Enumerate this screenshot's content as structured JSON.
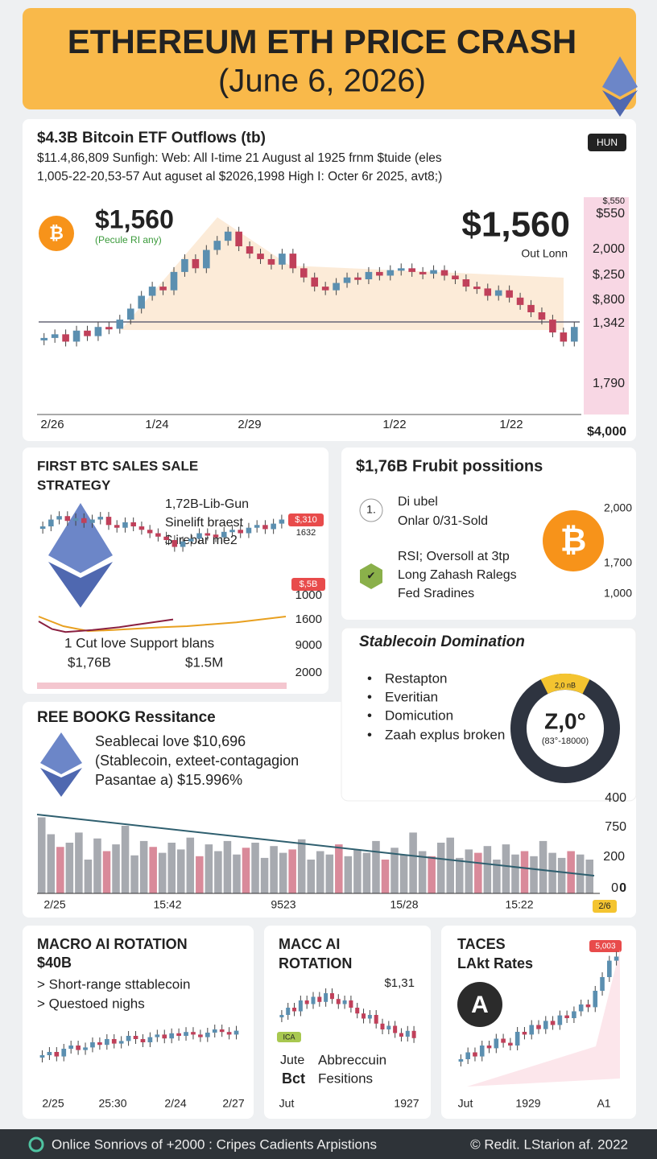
{
  "header": {
    "title": "ETHEREUM ETH PRICE CRASH",
    "subtitle": "(June 6, 2026)"
  },
  "main": {
    "title": "$4.3B Bitcoin ETF Outflows (tb)",
    "lines": [
      "$11.4,86,809 Sunfigh: Web: All I-time 21 August al 1925 frnm $tuide (eles",
      "1,005-22-20,53-57 Aut aguset al $2026,1998 High I: Octer 6r 2025, avt8;)"
    ],
    "badge": "HUN",
    "price_left": "$1,560",
    "price_left_note": "(Pecule RI any)",
    "price_right": "$1,560",
    "price_right_note": "Out Lonn",
    "right_labels": [
      "$,550",
      "$550",
      "2,000",
      "$,250",
      "$,800",
      "1,342",
      "1,790"
    ],
    "corner_label": "$4,000",
    "x_labels": [
      "2/26",
      "1/24",
      "2/29",
      "1/22",
      "1/22"
    ],
    "ylim": [
      1500,
      2400
    ],
    "values": [
      1720,
      1740,
      1700,
      1760,
      1730,
      1780,
      1770,
      1820,
      1880,
      1950,
      2000,
      1980,
      2080,
      2150,
      2100,
      2200,
      2250,
      2300,
      2220,
      2180,
      2150,
      2120,
      2180,
      2100,
      2050,
      2000,
      1980,
      2020,
      2050,
      2040,
      2080,
      2060,
      2090,
      2100,
      2080,
      2070,
      2090,
      2060,
      2040,
      2000,
      1990,
      1950,
      1980,
      1940,
      1900,
      1860,
      1820,
      1750,
      1700,
      1780
    ]
  },
  "strategy": {
    "title_lines": [
      "FIRST BTC SALES SALE",
      "STRATEGY"
    ],
    "notes": [
      "1,72B-Lib-Gun",
      "Sinelift braest",
      "$ irebar    me2"
    ],
    "badge": "$,310",
    "badge_note": "1632",
    "lower_badge": "$,5B",
    "axis_labels": [
      "1000",
      "1600",
      "9000",
      "2000"
    ],
    "support": "1 Cut love Support blans",
    "amount_left": "$1,76B",
    "amount_right": "$1.5M",
    "ylim": [
      0,
      100
    ],
    "values": [
      60,
      70,
      75,
      68,
      72,
      65,
      70,
      74,
      62,
      58,
      66,
      60,
      55,
      50,
      45,
      40,
      30,
      38,
      42,
      50,
      48,
      44,
      52,
      55,
      50,
      58,
      62,
      56,
      64,
      70
    ],
    "line_a": [
      40,
      20,
      10,
      12,
      15,
      18,
      20,
      24,
      28,
      34,
      40
    ],
    "line_b": [
      30,
      14,
      8,
      10,
      12,
      15,
      18,
      22,
      26,
      30,
      34
    ]
  },
  "positions": {
    "title": "$1,76B Frubit possitions",
    "items": [
      {
        "icon": "1.",
        "lines": [
          "Di ubel",
          "Onlar 0/31-Sold"
        ]
      },
      {
        "icon": "✔",
        "lines": [
          "RSI; Oversoll at 3tp",
          "Long Zahash Ralegs",
          "Fed Sradines"
        ]
      }
    ],
    "axis_labels": [
      "2,000",
      "1,700",
      "1,000"
    ]
  },
  "stablecoin": {
    "title": "Stablecoin Domination",
    "bullets": [
      "Restapton",
      "Everitian",
      "Domicution",
      "Zaah explus broken"
    ],
    "donut_tag": "2,0 nB",
    "donut_value": "Z,0°",
    "donut_note": "(83°-18000)"
  },
  "resistance": {
    "title": "REE BOOKG Ressitance",
    "lines": [
      "Seablecai love $10,696",
      "(Stablecoin, exteet-contagagion",
      "Pasantae a) $15.996%"
    ]
  },
  "volume": {
    "y_labels": [
      "400",
      "750",
      "200",
      "0"
    ],
    "x_labels": [
      "2/25",
      "15:42",
      "9523",
      "15/28",
      "15:22"
    ],
    "tag": "2/6",
    "ylim": [
      0,
      100
    ],
    "values": [
      90,
      70,
      55,
      60,
      72,
      40,
      65,
      50,
      58,
      80,
      45,
      62,
      55,
      48,
      60,
      52,
      66,
      44,
      58,
      50,
      62,
      46,
      54,
      60,
      42,
      56,
      48,
      52,
      64,
      40,
      50,
      46,
      58,
      44,
      52,
      48,
      62,
      40,
      54,
      46,
      72,
      50,
      44,
      60,
      66,
      42,
      52,
      48,
      56,
      40,
      58,
      46,
      50,
      44,
      62,
      48,
      42,
      50,
      46,
      40
    ]
  },
  "bottom": [
    {
      "title_lines": [
        "MACRO AI ROTATION",
        "$40B"
      ],
      "lines": [
        "> Short-range sttablecoin",
        "> Questoed nighs"
      ],
      "x_labels": [
        "2/25",
        "25:30",
        "2/24",
        "2/27"
      ],
      "ylim": [
        0,
        100
      ],
      "values": [
        30,
        35,
        28,
        40,
        45,
        38,
        42,
        50,
        46,
        55,
        48,
        52,
        60,
        55,
        50,
        58,
        62,
        56,
        64,
        60,
        66,
        62,
        58,
        65,
        70,
        66,
        62,
        68
      ]
    },
    {
      "title_lines": [
        "MACC AI",
        "ROTATION"
      ],
      "note": "$1,31",
      "tag": "ICA",
      "lines": [
        "Jute",
        "Bct"
      ],
      "lines2": [
        "Abbreccuin",
        "Fesitions"
      ],
      "x_labels": [
        "Jut",
        "1927"
      ],
      "ylim": [
        0,
        100
      ],
      "values": [
        60,
        70,
        65,
        80,
        75,
        85,
        78,
        90,
        82,
        75,
        80,
        70,
        62,
        55,
        60,
        48,
        40,
        45,
        35,
        30,
        38,
        28
      ]
    },
    {
      "title_lines": [
        "TACES",
        "LAkt Rates"
      ],
      "badge": "5,003",
      "x_labels": [
        "Jut",
        "1929",
        "A1"
      ],
      "ylim": [
        0,
        100
      ],
      "values": [
        20,
        25,
        22,
        30,
        28,
        35,
        32,
        30,
        40,
        38,
        45,
        42,
        48,
        45,
        52,
        50,
        55,
        60,
        58,
        70,
        80,
        92,
        95
      ]
    }
  ],
  "footer": {
    "left": "Onlice Sonriovs of +2000 : Cripes Cadients Arpistions",
    "right": "© Redit. LStarion af. 2022"
  }
}
